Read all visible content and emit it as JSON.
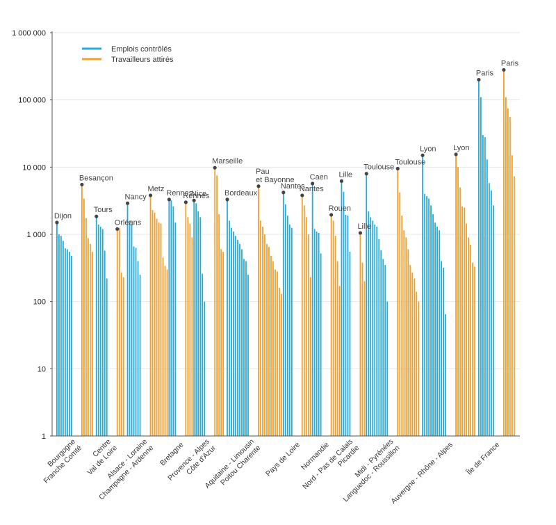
{
  "chart_data": {
    "type": "bar",
    "yscale": "log",
    "ylim": [
      1,
      1000000
    ],
    "yticks": [
      "1",
      "10",
      "100",
      "1 000",
      "10 000",
      "100 000",
      "1 000 000"
    ],
    "grid": true,
    "legend_position": "top-left",
    "colors": {
      "emplois": "#29aad8",
      "travailleurs": "#f0a030",
      "marker": "#444444",
      "grid": "#e6e6e6",
      "axis": "#555555"
    },
    "series": [
      {
        "name": "Emplois contrôlés",
        "key": "emplois"
      },
      {
        "name": "Travailleurs attirés",
        "key": "travailleurs"
      }
    ],
    "regions": [
      {
        "label_lines": [
          "Bourgogne",
          "Franche Comté"
        ],
        "emplois": [
          1500,
          1000,
          950,
          800,
          620,
          600,
          550,
          480
        ],
        "travailleurs": [
          5500,
          3400,
          1750,
          880,
          720,
          550,
          1
        ],
        "annotations": [
          {
            "text": [
              "Dijon"
            ],
            "series": "emplois",
            "index": 0
          },
          {
            "text": [
              "Besançon"
            ],
            "series": "travailleurs",
            "index": 0
          }
        ]
      },
      {
        "label_lines": [
          "Centre",
          "Val de Loire"
        ],
        "emplois": [
          1850,
          1400,
          1300,
          1200,
          570,
          220
        ],
        "travailleurs": [
          1200,
          1250,
          270,
          230,
          1
        ],
        "annotations": [
          {
            "text": [
              "Tours"
            ],
            "series": "emplois",
            "index": 0
          },
          {
            "text": [
              "Orléans"
            ],
            "series": "travailleurs",
            "index": 0
          }
        ]
      },
      {
        "label_lines": [
          "Alsace - Loraine",
          "Champagne - Ardenne"
        ],
        "emplois": [
          2900,
          1600,
          1400,
          660,
          630,
          400,
          250
        ],
        "travailleurs": [
          3800,
          2300,
          2100,
          1700,
          1500,
          1450,
          450,
          340,
          300
        ],
        "annotations": [
          {
            "text": [
              "Nancy"
            ],
            "series": "emplois",
            "index": 0
          },
          {
            "text": [
              "Metz"
            ],
            "series": "travailleurs",
            "index": 0
          }
        ]
      },
      {
        "label_lines": [
          "Bretagne"
        ],
        "emplois": [
          3300,
          3200,
          2600,
          1500
        ],
        "travailleurs": [
          3000,
          1800,
          1450,
          900
        ],
        "annotations": [
          {
            "text": [
              "Rennes"
            ],
            "series": "emplois",
            "index": 0
          },
          {
            "text": [
              "Rennes"
            ],
            "series": "travailleurs",
            "index": 0
          }
        ]
      },
      {
        "label_lines": [
          "Provence - Alpes",
          "Côte d'Azur"
        ],
        "emplois": [
          3200,
          2900,
          2200,
          1800,
          260,
          100
        ],
        "travailleurs": [
          9800,
          7500,
          2000,
          600,
          550,
          1
        ],
        "annotations": [
          {
            "text": [
              "Nice"
            ],
            "series": "emplois",
            "index": 0
          },
          {
            "text": [
              "Marseille"
            ],
            "series": "travailleurs",
            "index": 0
          }
        ]
      },
      {
        "label_lines": [
          "Aquitaine - Limousin",
          "Poitou Charente"
        ],
        "emplois": [
          3300,
          1600,
          1250,
          1100,
          950,
          830,
          720,
          600,
          430,
          400,
          250
        ],
        "travailleurs": [
          5200,
          1600,
          1300,
          1000,
          720,
          650,
          480,
          400,
          300,
          280,
          160,
          130
        ],
        "annotations": [
          {
            "text": [
              "Bordeaux"
            ],
            "series": "emplois",
            "index": 0
          },
          {
            "text": [
              "Pau",
              "et Bayonne"
            ],
            "series": "travailleurs",
            "index": 0
          }
        ]
      },
      {
        "label_lines": [
          "Pays de Loire"
        ],
        "emplois": [
          4200,
          2800,
          1900,
          1400,
          1250
        ],
        "travailleurs": [
          3800,
          2700,
          1800,
          1000,
          230
        ],
        "annotations": [
          {
            "text": [
              "Nantes"
            ],
            "series": "emplois",
            "index": 0
          },
          {
            "text": [
              "Nantes"
            ],
            "series": "travailleurs",
            "index": 0
          }
        ]
      },
      {
        "label_lines": [
          "Normandie"
        ],
        "emplois": [
          5700,
          1200,
          1100,
          1050,
          520
        ],
        "travailleurs": [
          1950,
          1600,
          950,
          400,
          170
        ],
        "annotations": [
          {
            "text": [
              "Caen"
            ],
            "series": "emplois",
            "index": 0
          },
          {
            "text": [
              "Rouen"
            ],
            "series": "travailleurs",
            "index": 0
          }
        ]
      },
      {
        "label_lines": [
          "Nord - Pas de Calais",
          "Picardie"
        ],
        "emplois": [
          6200,
          4300,
          1950,
          1900,
          550
        ],
        "travailleurs": [
          1050,
          380,
          200
        ],
        "annotations": [
          {
            "text": [
              "Lille"
            ],
            "series": "emplois",
            "index": 0
          },
          {
            "text": [
              "Lille"
            ],
            "series": "travailleurs",
            "index": 0
          }
        ]
      },
      {
        "label_lines": [
          "Midi - Pyrénées",
          "Languedoc - Roussillon"
        ],
        "emplois": [
          8000,
          2200,
          1800,
          1600,
          1400,
          1300,
          850,
          580,
          430,
          350,
          100
        ],
        "travailleurs": [
          9500,
          4200,
          1900,
          1150,
          900,
          600,
          350,
          270,
          220,
          140,
          100,
          1
        ],
        "annotations": [
          {
            "text": [
              "Toulouse"
            ],
            "series": "emplois",
            "index": 0
          },
          {
            "text": [
              "Toulouse"
            ],
            "series": "travailleurs",
            "index": 0
          }
        ]
      },
      {
        "label_lines": [
          "Auvergne - Rhône - Alpes"
        ],
        "emplois": [
          15000,
          4000,
          3700,
          3400,
          2700,
          2000,
          1500,
          1300,
          1150,
          400,
          320,
          65
        ],
        "travailleurs": [
          15500,
          10000,
          5000,
          2600,
          2500,
          1450,
          900,
          700,
          380,
          330,
          1
        ],
        "annotations": [
          {
            "text": [
              "Lyon"
            ],
            "series": "emplois",
            "index": 0
          },
          {
            "text": [
              "Lyon"
            ],
            "series": "travailleurs",
            "index": 0
          }
        ]
      },
      {
        "label_lines": [
          "Île de France"
        ],
        "emplois": [
          200000,
          110000,
          30000,
          28000,
          13000,
          5800,
          4500,
          2700
        ],
        "travailleurs": [
          280000,
          110000,
          75000,
          56000,
          15000,
          7300
        ],
        "annotations": [
          {
            "text": [
              "Paris"
            ],
            "series": "emplois",
            "index": 0
          },
          {
            "text": [
              "Paris"
            ],
            "series": "travailleurs",
            "index": 0
          }
        ]
      }
    ]
  }
}
